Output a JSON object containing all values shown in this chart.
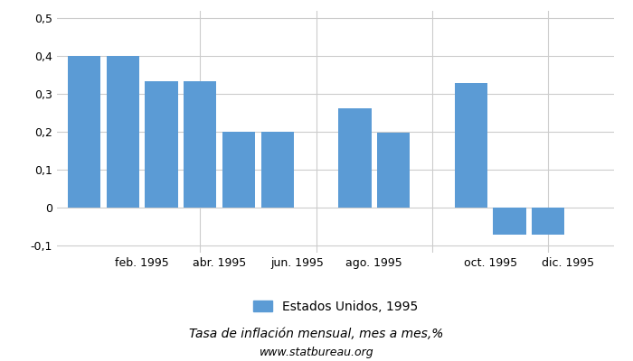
{
  "months_positions": [
    0,
    1,
    2,
    3,
    4,
    5,
    7,
    8,
    10,
    11,
    12
  ],
  "values": [
    0.401,
    0.401,
    0.334,
    0.334,
    0.2,
    0.2,
    0.263,
    0.197,
    0.329,
    -0.072,
    -0.072
  ],
  "bar_color": "#5b9bd5",
  "xtick_positions": [
    1.5,
    3.5,
    5.5,
    7.5,
    10.5,
    12.5
  ],
  "xtick_labels": [
    "feb. 1995",
    "abr. 1995",
    "jun. 1995",
    "ago. 1995",
    "oct. 1995",
    "dic. 1995"
  ],
  "grid_x_positions": [
    0,
    3,
    6,
    9,
    12,
    15
  ],
  "ylim": [
    -0.12,
    0.52
  ],
  "yticks": [
    -0.1,
    0.0,
    0.1,
    0.2,
    0.3,
    0.4,
    0.5
  ],
  "ytick_labels": [
    "-0,1",
    "0",
    "0,1",
    "0,2",
    "0,3",
    "0,4",
    "0,5"
  ],
  "legend_label": "Estados Unidos, 1995",
  "title": "Tasa de inflación mensual, mes a mes,%",
  "subtitle": "www.statbureau.org",
  "background_color": "#ffffff",
  "grid_color": "#cccccc",
  "bar_width": 0.85
}
